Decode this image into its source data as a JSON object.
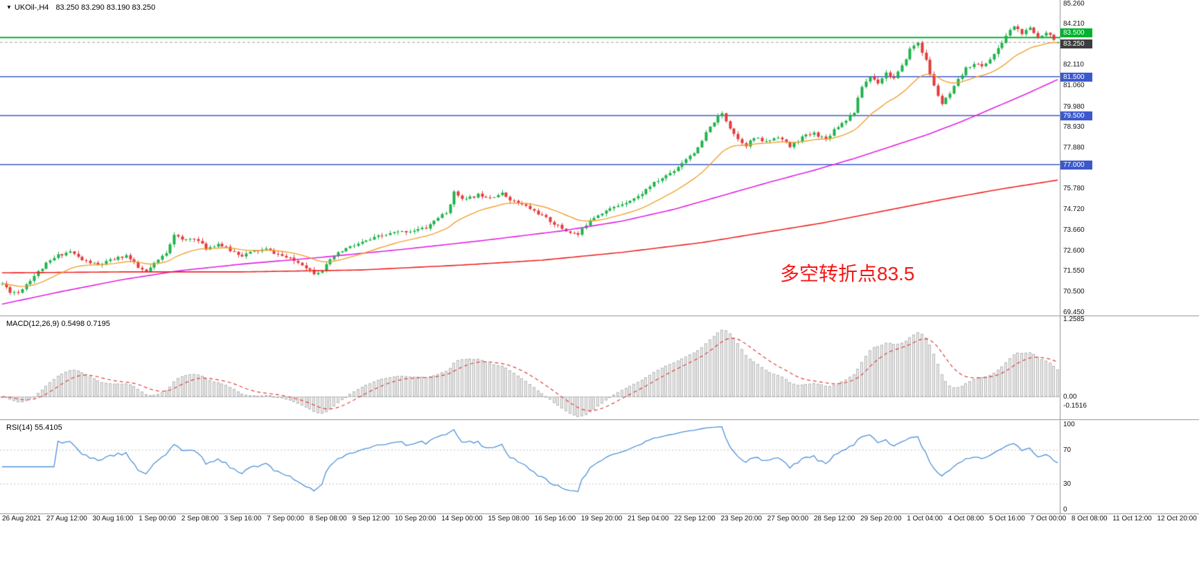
{
  "main_chart": {
    "header": {
      "expander_icon": "▼",
      "symbol": "UKOil-,H4",
      "ohlc": "83.250 83.290 83.190 83.250"
    },
    "annotation": {
      "text": "多空转折点83.5",
      "color": "#f51616"
    },
    "axis": {
      "ticks": [
        {
          "label": "85.260",
          "value": 85.26
        },
        {
          "label": "84.210",
          "value": 84.21
        },
        {
          "label": "82.110",
          "value": 82.11
        },
        {
          "label": "81.060",
          "value": 81.06
        },
        {
          "label": "79.980",
          "value": 79.98
        },
        {
          "label": "78.930",
          "value": 78.93
        },
        {
          "label": "77.880",
          "value": 77.88
        },
        {
          "label": "75.780",
          "value": 75.78
        },
        {
          "label": "74.720",
          "value": 74.72
        },
        {
          "label": "73.660",
          "value": 73.66
        },
        {
          "label": "72.600",
          "value": 72.6
        },
        {
          "label": "71.550",
          "value": 71.55
        },
        {
          "label": "70.500",
          "value": 70.5
        },
        {
          "label": "69.450",
          "value": 69.45
        }
      ]
    }
  },
  "macd_panel": {
    "header": "MACD(12,26,9) 0.5498 0.7195",
    "axis": [
      {
        "label": "1.2585",
        "value": 1.2585
      },
      {
        "label": "0.00",
        "value": 0
      },
      {
        "label": "-0.1516",
        "value": -0.1516
      }
    ]
  },
  "rsi_panel": {
    "header": "RSI(14) 55.4105",
    "axis": [
      {
        "label": "100",
        "value": 100
      },
      {
        "label": "70",
        "value": 70
      },
      {
        "label": "30",
        "value": 30
      },
      {
        "label": "0",
        "value": 0
      }
    ]
  },
  "chart_data": {
    "type": "candlestick",
    "symbol": "UKOil-",
    "timeframe": "H4",
    "bars_total": 265,
    "seed": 11,
    "ylim": [
      69.3,
      85.42
    ],
    "up_color": "#21b24b",
    "down_color": "#e23b3b",
    "last_bar": {
      "open": 83.25,
      "high": 83.29,
      "low": 83.19,
      "close": 83.25
    },
    "close_anchors": [
      [
        0,
        70.9
      ],
      [
        2,
        70.5
      ],
      [
        4,
        70.45
      ],
      [
        7,
        71.1
      ],
      [
        11,
        71.9
      ],
      [
        14,
        72.35
      ],
      [
        17,
        72.55
      ],
      [
        20,
        72.1
      ],
      [
        24,
        71.85
      ],
      [
        28,
        72.15
      ],
      [
        31,
        72.35
      ],
      [
        34,
        71.7
      ],
      [
        36,
        71.5
      ],
      [
        39,
        72.1
      ],
      [
        41,
        72.5
      ],
      [
        43,
        73.45
      ],
      [
        45,
        73.1
      ],
      [
        48,
        73.25
      ],
      [
        51,
        72.7
      ],
      [
        54,
        72.95
      ],
      [
        57,
        72.6
      ],
      [
        60,
        72.35
      ],
      [
        63,
        72.55
      ],
      [
        66,
        72.65
      ],
      [
        69,
        72.4
      ],
      [
        72,
        72.15
      ],
      [
        75,
        71.9
      ],
      [
        78,
        71.45
      ],
      [
        80,
        71.6
      ],
      [
        83,
        72.3
      ],
      [
        86,
        72.7
      ],
      [
        90,
        73.0
      ],
      [
        94,
        73.3
      ],
      [
        98,
        73.5
      ],
      [
        102,
        73.6
      ],
      [
        106,
        73.75
      ],
      [
        109,
        74.3
      ],
      [
        111,
        74.5
      ],
      [
        113,
        75.55
      ],
      [
        116,
        75.2
      ],
      [
        119,
        75.45
      ],
      [
        122,
        75.35
      ],
      [
        125,
        75.5
      ],
      [
        128,
        75.1
      ],
      [
        131,
        74.85
      ],
      [
        134,
        74.5
      ],
      [
        137,
        74.1
      ],
      [
        141,
        73.6
      ],
      [
        144,
        73.4
      ],
      [
        147,
        74.2
      ],
      [
        150,
        74.55
      ],
      [
        153,
        74.8
      ],
      [
        156,
        75.1
      ],
      [
        159,
        75.35
      ],
      [
        162,
        75.9
      ],
      [
        165,
        76.3
      ],
      [
        168,
        76.7
      ],
      [
        171,
        77.3
      ],
      [
        174,
        77.8
      ],
      [
        176,
        78.6
      ],
      [
        178,
        79.2
      ],
      [
        180,
        79.6
      ],
      [
        182,
        78.9
      ],
      [
        184,
        78.3
      ],
      [
        186,
        78.0
      ],
      [
        188,
        78.35
      ],
      [
        191,
        78.15
      ],
      [
        194,
        78.45
      ],
      [
        197,
        77.9
      ],
      [
        200,
        78.4
      ],
      [
        203,
        78.6
      ],
      [
        206,
        78.3
      ],
      [
        208,
        78.8
      ],
      [
        211,
        79.3
      ],
      [
        213,
        79.7
      ],
      [
        215,
        81.0
      ],
      [
        217,
        81.5
      ],
      [
        219,
        81.2
      ],
      [
        221,
        81.7
      ],
      [
        223,
        81.4
      ],
      [
        225,
        82.0
      ],
      [
        227,
        82.9
      ],
      [
        229,
        83.25
      ],
      [
        231,
        82.3
      ],
      [
        233,
        81.0
      ],
      [
        235,
        80.1
      ],
      [
        237,
        80.6
      ],
      [
        239,
        81.3
      ],
      [
        241,
        81.9
      ],
      [
        243,
        82.2
      ],
      [
        245,
        82.0
      ],
      [
        247,
        82.4
      ],
      [
        249,
        82.9
      ],
      [
        251,
        83.6
      ],
      [
        253,
        84.1
      ],
      [
        255,
        83.7
      ],
      [
        257,
        83.95
      ],
      [
        259,
        83.5
      ],
      [
        261,
        83.8
      ],
      [
        263,
        83.45
      ],
      [
        264,
        83.25
      ]
    ],
    "hlines": [
      {
        "value": 83.5,
        "label": "83.500",
        "color": "#00b22d",
        "width": 2,
        "style": "solid",
        "box_bg": "#00b22d",
        "box_dy": -13
      },
      {
        "value": 83.25,
        "label": "83.250",
        "color": "#a0a0a0",
        "width": 1,
        "style": "dash",
        "box_bg": "#3d3d3d",
        "box_dy": -4
      },
      {
        "value": 81.5,
        "label": "81.500",
        "color": "#3c59cc",
        "width": 1.5,
        "style": "solid",
        "box_bg": "#3c59cc",
        "box_dy": -6
      },
      {
        "value": 79.5,
        "label": "79.500",
        "color": "#3c59cc",
        "width": 1.5,
        "style": "solid",
        "box_bg": "#3c59cc",
        "box_dy": -6
      },
      {
        "value": 77.0,
        "label": "77.000",
        "color": "#3c59cc",
        "width": 1.5,
        "style": "solid",
        "box_bg": "#3c59cc",
        "box_dy": -6
      }
    ],
    "ma_fast": {
      "period": 20,
      "color": "#f0a030"
    },
    "ma_mid_color": "#e21fe2",
    "ma_mid_anchors": [
      [
        0,
        69.85
      ],
      [
        15,
        70.5
      ],
      [
        30,
        71.1
      ],
      [
        44,
        71.55
      ],
      [
        60,
        71.9
      ],
      [
        80,
        72.25
      ],
      [
        100,
        72.65
      ],
      [
        120,
        73.1
      ],
      [
        140,
        73.6
      ],
      [
        155,
        74.1
      ],
      [
        168,
        74.7
      ],
      [
        180,
        75.4
      ],
      [
        192,
        76.1
      ],
      [
        203,
        76.7
      ],
      [
        213,
        77.3
      ],
      [
        222,
        77.9
      ],
      [
        231,
        78.5
      ],
      [
        240,
        79.2
      ],
      [
        248,
        79.9
      ],
      [
        256,
        80.6
      ],
      [
        264,
        81.35
      ]
    ],
    "ma_slow_color": "#ef2020",
    "ma_slow_anchors": [
      [
        0,
        71.45
      ],
      [
        30,
        71.5
      ],
      [
        60,
        71.5
      ],
      [
        90,
        71.6
      ],
      [
        115,
        71.85
      ],
      [
        135,
        72.1
      ],
      [
        155,
        72.5
      ],
      [
        175,
        73.0
      ],
      [
        190,
        73.5
      ],
      [
        205,
        74.0
      ],
      [
        220,
        74.6
      ],
      [
        235,
        75.2
      ],
      [
        250,
        75.75
      ],
      [
        264,
        76.2
      ]
    ],
    "macd": {
      "fast": 12,
      "slow": 26,
      "signal": 9,
      "current_macd": 0.5498,
      "current_signal": 0.7195,
      "ylim": [
        -0.1516,
        1.2585
      ],
      "hist_fill": "#ececec",
      "hist_stroke": "#b4b4b4",
      "signal_color": "#e23b3b",
      "zero_line_color": "#c6c6c6"
    },
    "rsi": {
      "period": 14,
      "current": 55.4105,
      "levels": [
        70,
        30
      ],
      "color": "#4a90d9",
      "level_color": "#c2c2c2"
    },
    "x_labels": [
      "26 Aug 2021",
      "27 Aug 12:00",
      "30 Aug 16:00",
      "1 Sep 00:00",
      "2 Sep 08:00",
      "3 Sep 16:00",
      "7 Sep 00:00",
      "8 Sep 08:00",
      "9 Sep 12:00",
      "10 Sep 20:00",
      "14 Sep 00:00",
      "15 Sep 08:00",
      "16 Sep 16:00",
      "19 Sep 20:00",
      "21 Sep 04:00",
      "22 Sep 12:00",
      "23 Sep 20:00",
      "27 Sep 00:00",
      "28 Sep 12:00",
      "29 Sep 20:00",
      "1 Oct 04:00",
      "4 Oct 08:00",
      "5 Oct 16:00",
      "7 Oct 00:00",
      "8 Oct 08:00",
      "11 Oct 12:00",
      "12 Oct 20:00"
    ]
  }
}
